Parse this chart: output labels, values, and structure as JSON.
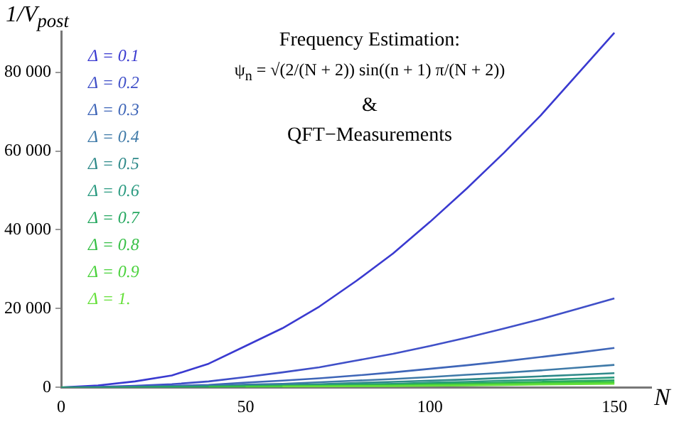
{
  "chart_data": {
    "type": "line",
    "xlabel": "N",
    "ylabel": "1/V$_{post}$",
    "annotations": [
      "Frequency Estimation:",
      "ψ$_{n}$ = √(2/(N + 2)) sin((n + 1) π/(N + 2))",
      "&",
      "QFT−Measurements"
    ],
    "x": [
      0,
      10,
      20,
      30,
      40,
      50,
      60,
      70,
      80,
      90,
      100,
      110,
      120,
      130,
      140,
      150
    ],
    "series": [
      {
        "name": "Δ = 0.1",
        "color": "#3a3ad0",
        "values": [
          0,
          500,
          1500,
          3000,
          6000,
          10500,
          15000,
          20500,
          27000,
          34000,
          42000,
          50500,
          59500,
          69000,
          79500,
          90000
        ]
      },
      {
        "name": "Δ = 0.2",
        "color": "#4050c8",
        "values": [
          0,
          100,
          400,
          800,
          1500,
          2600,
          3800,
          5100,
          6800,
          8500,
          10500,
          12600,
          14900,
          17300,
          19900,
          22600
        ]
      },
      {
        "name": "Δ = 0.3",
        "color": "#3f66b8",
        "values": [
          0,
          0,
          200,
          400,
          600,
          1200,
          1700,
          2300,
          3000,
          3800,
          4700,
          5600,
          6600,
          7700,
          8800,
          10000
        ]
      },
      {
        "name": "Δ = 0.4",
        "color": "#3f7aa8",
        "values": [
          0,
          0,
          100,
          200,
          400,
          700,
          900,
          1300,
          1700,
          2100,
          2600,
          3200,
          3700,
          4300,
          5000,
          5700
        ]
      },
      {
        "name": "Δ = 0.5",
        "color": "#2f8a8a",
        "values": [
          0,
          0,
          100,
          100,
          200,
          400,
          600,
          800,
          1100,
          1400,
          1700,
          2000,
          2400,
          2800,
          3200,
          3600
        ]
      },
      {
        "name": "Δ = 0.6",
        "color": "#2a9a80",
        "values": [
          0,
          0,
          0,
          100,
          200,
          300,
          400,
          600,
          800,
          900,
          1200,
          1400,
          1700,
          1900,
          2200,
          2500
        ]
      },
      {
        "name": "Δ = 0.7",
        "color": "#26a860",
        "values": [
          0,
          0,
          0,
          100,
          100,
          200,
          300,
          400,
          600,
          700,
          900,
          1000,
          1200,
          1400,
          1600,
          1800
        ]
      },
      {
        "name": "Δ = 0.8",
        "color": "#36bf46",
        "values": [
          null,
          null,
          null,
          null,
          100,
          200,
          200,
          300,
          400,
          500,
          700,
          800,
          900,
          1100,
          1200,
          1400
        ]
      },
      {
        "name": "Δ = 0.9",
        "color": "#4ad23c",
        "values": [
          null,
          null,
          null,
          null,
          null,
          100,
          200,
          300,
          300,
          400,
          500,
          600,
          700,
          900,
          1000,
          1100
        ]
      },
      {
        "name": "Δ = 1.",
        "color": "#66e03a",
        "values": [
          null,
          null,
          null,
          null,
          null,
          null,
          200,
          200,
          300,
          300,
          400,
          500,
          600,
          700,
          800,
          900
        ]
      }
    ],
    "xlim": [
      0,
      160
    ],
    "ylim": [
      0,
      90400
    ],
    "xticks": [
      0,
      50,
      100,
      150
    ],
    "yticks": [
      0,
      {
        "value": 20000,
        "label": "20 000"
      },
      {
        "value": 40000,
        "label": "40 000"
      },
      {
        "value": 60000,
        "label": "60 000"
      },
      {
        "value": 80000,
        "label": "80 000"
      }
    ],
    "grid": false,
    "legend": "top left",
    "marker": "none",
    "line_style": "solid"
  }
}
